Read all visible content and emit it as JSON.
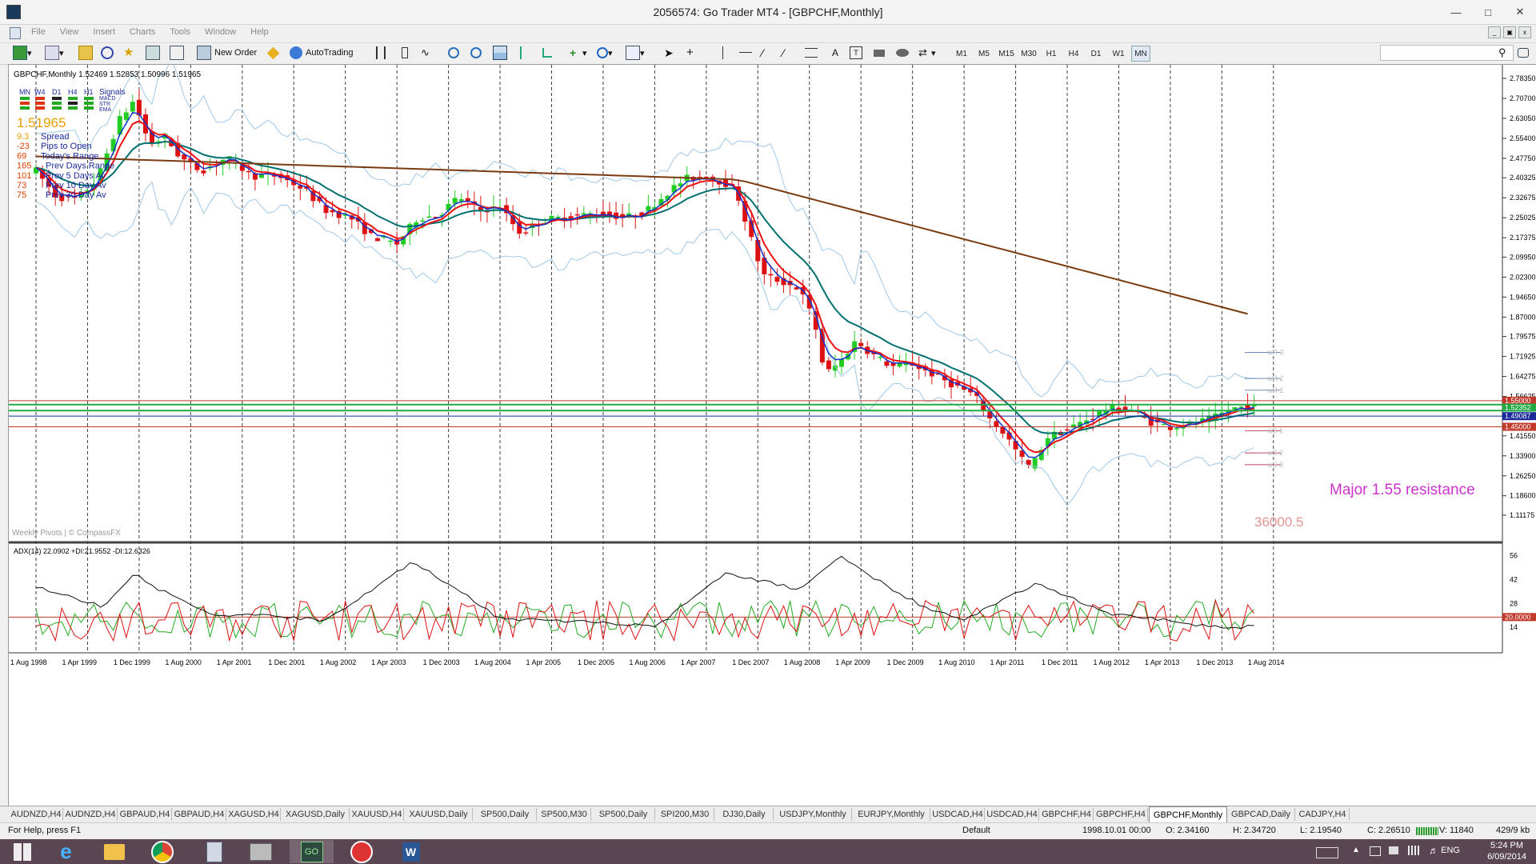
{
  "window": {
    "title": "2056574: Go Trader MT4 - [GBPCHF,Monthly]"
  },
  "menu": [
    "File",
    "View",
    "Insert",
    "Charts",
    "Tools",
    "Window",
    "Help"
  ],
  "toolbar": {
    "new_order": "New Order",
    "auto_trading": "AutoTrading",
    "timeframes": [
      "M1",
      "M5",
      "M15",
      "M30",
      "H1",
      "H4",
      "D1",
      "W1",
      "MN"
    ]
  },
  "chart": {
    "header": "GBPCHF,Monthly  1.52469 1.52853 1.50996 1.51965",
    "signals": {
      "timeframes": [
        "MN",
        "W4",
        "D1",
        "H4",
        "H1"
      ],
      "title": "Signals",
      "rows": [
        "MACD",
        "STR",
        "EMA"
      ]
    },
    "info_price": "1.51965",
    "info_rows": [
      {
        "value": "9.3",
        "label": "Spread",
        "color": "#e5a000"
      },
      {
        "value": "-23",
        "label": "Pips to Open",
        "color": "#e04000"
      },
      {
        "value": "69",
        "label": "Today's Range",
        "color": "#e04000"
      },
      {
        "value": "165",
        "label": "Prev Days Range",
        "color": "#e04000"
      },
      {
        "value": "101",
        "label": "Prev 5 Days Av",
        "color": "#e04000"
      },
      {
        "value": "73",
        "label": "Prev 10 Day Av",
        "color": "#e04000"
      },
      {
        "value": "75",
        "label": "Prev 30 Day Av",
        "color": "#e04000"
      }
    ],
    "watermark": "Weekly Pivots | © CompassFX",
    "annotation": "Major 1.55 resistance",
    "annotation_color": "#cc33cc",
    "center_label": "36000.5",
    "pivot_labels": [
      "wR 3",
      "wR 2",
      "wR 1",
      "wS 1",
      "wS 2",
      "wS 3"
    ],
    "price_axis": [
      "2.78350",
      "2.70700",
      "2.63050",
      "2.55400",
      "2.47750",
      "2.40325",
      "2.32675",
      "2.25025",
      "2.17375",
      "2.09950",
      "2.02300",
      "1.94650",
      "1.87000",
      "1.79575",
      "1.71925",
      "1.64275",
      "1.56625",
      "1.49087",
      "1.41550",
      "1.33900",
      "1.26250",
      "1.18600",
      "1.11175"
    ],
    "price_tags": [
      {
        "text": "1.55000",
        "color": "#c0392b"
      },
      {
        "text": "1.52352",
        "color": "#22aa44"
      },
      {
        "text": "1.49087",
        "color": "#1a2a9a"
      },
      {
        "text": "1.45000",
        "color": "#c0392b"
      }
    ],
    "time_axis": [
      "1 Aug 1998",
      "1 Apr 1999",
      "1 Dec 1999",
      "1 Aug 2000",
      "1 Apr 2001",
      "1 Dec 2001",
      "1 Aug 2002",
      "1 Apr 2003",
      "1 Dec 2003",
      "1 Aug 2004",
      "1 Apr 2005",
      "1 Dec 2005",
      "1 Aug 2006",
      "1 Apr 2007",
      "1 Dec 2007",
      "1 Aug 2008",
      "1 Apr 2009",
      "1 Dec 2009",
      "1 Aug 2010",
      "1 Apr 2011",
      "1 Dec 2011",
      "1 Aug 2012",
      "1 Apr 2013",
      "1 Dec 2013",
      "1 Aug 2014"
    ],
    "adx_header": "ADX(14) 22.0902 +DI:21.9552 -DI:12.6326",
    "adx_axis": [
      "56",
      "42",
      "28",
      "14"
    ],
    "adx_level": "20.0000",
    "colors": {
      "bull": "#22cc22",
      "bear": "#dd1111",
      "sma_long": "#7a3b10",
      "ema_fast": "#ee1111",
      "ema_blue": "#1133cc",
      "ema_mid": "#007070",
      "bands": "#9fc8e8"
    }
  },
  "tabs": [
    "AUDNZD,H4",
    "AUDNZD,H4",
    "GBPAUD,H4",
    "GBPAUD,H4",
    "XAGUSD,H4",
    "XAGUSD,Daily",
    "XAUUSD,H4",
    "XAUUSD,Daily",
    "SP500,Daily",
    "SP500,M30",
    "SP500,Daily",
    "SPI200,M30",
    "DJ30,Daily",
    "USDJPY,Monthly",
    "EURJPY,Monthly",
    "USDCAD,H4",
    "USDCAD,H4",
    "GBPCHF,H4",
    "GBPCHF,H4",
    "GBPCHF,Monthly",
    "GBPCAD,Daily",
    "CADJPY,H4"
  ],
  "active_tab": "GBPCHF,Monthly",
  "status": {
    "help": "For Help, press F1",
    "profile": "Default",
    "datetime": "1998.10.01 00:00",
    "open": "O: 2.34160",
    "high": "H: 2.34720",
    "low": "L: 2.19540",
    "close": "C: 2.26510",
    "volume": "V: 11840",
    "traffic": "429/9 kb"
  },
  "taskbar": {
    "lang": "ENG",
    "time": "5:24 PM",
    "date": "6/09/2014"
  }
}
